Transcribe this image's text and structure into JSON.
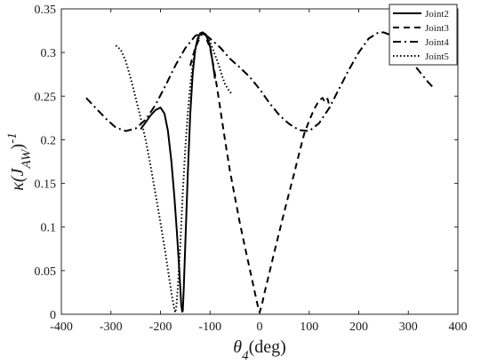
{
  "chart_data": {
    "type": "line",
    "xlabel": {
      "main": "θ",
      "sub": "4",
      "tail": "(deg)"
    },
    "ylabel": {
      "main": "κ(J",
      "sub": "AW",
      "close": ")",
      "sup": "-1"
    },
    "xlim": [
      -400,
      400
    ],
    "ylim": [
      0,
      0.35
    ],
    "xticks": [
      -400,
      -300,
      -200,
      -100,
      0,
      100,
      200,
      300,
      400
    ],
    "xtick_labels": [
      "-400",
      "-300",
      "-200",
      "-100",
      "0",
      "100",
      "200",
      "300",
      "400"
    ],
    "yticks": [
      0,
      0.05,
      0.1,
      0.15,
      0.2,
      0.25,
      0.3,
      0.35
    ],
    "ytick_labels": [
      "0",
      "0.05",
      "0.1",
      "0.15",
      "0.2",
      "0.25",
      "0.3",
      "0.35"
    ],
    "grid": false,
    "legend_position": "top-right",
    "series": [
      {
        "name": "Joint2",
        "dash": "solid",
        "x": [
          -240,
          -230,
          -220,
          -210,
          -200,
          -192,
          -185,
          -178,
          -172,
          -167,
          -163,
          -160,
          -158,
          -156,
          -155,
          -153,
          -150,
          -145,
          -140,
          -135,
          -130,
          -125,
          -120,
          -115,
          -110,
          -105,
          -100,
          -95,
          -90
        ],
        "y": [
          0.212,
          0.22,
          0.228,
          0.234,
          0.237,
          0.23,
          0.21,
          0.175,
          0.135,
          0.095,
          0.06,
          0.03,
          0.01,
          0.003,
          0.004,
          0.03,
          0.08,
          0.16,
          0.23,
          0.275,
          0.303,
          0.316,
          0.322,
          0.323,
          0.321,
          0.316,
          0.307,
          0.29,
          0.27
        ]
      },
      {
        "name": "Joint3",
        "dash": "dashed",
        "x": [
          -140,
          -130,
          -120,
          -115,
          -110,
          -100,
          -90,
          -80,
          -70,
          -60,
          -50,
          -40,
          -30,
          -20,
          -10,
          -3,
          0,
          5,
          10,
          20,
          30,
          40,
          50,
          60,
          70,
          80,
          90,
          100,
          110,
          120,
          127,
          132,
          137,
          142
        ],
        "y": [
          0.285,
          0.305,
          0.318,
          0.322,
          0.32,
          0.305,
          0.275,
          0.238,
          0.2,
          0.165,
          0.135,
          0.105,
          0.078,
          0.052,
          0.026,
          0.008,
          0.002,
          0.012,
          0.025,
          0.048,
          0.072,
          0.095,
          0.118,
          0.14,
          0.162,
          0.185,
          0.207,
          0.222,
          0.235,
          0.245,
          0.248,
          0.243,
          0.247,
          0.236
        ]
      },
      {
        "name": "Joint4",
        "dash": "dash-dot",
        "x": [
          -350,
          -330,
          -310,
          -290,
          -270,
          -250,
          -230,
          -210,
          -190,
          -170,
          -150,
          -130,
          -115,
          -100,
          -80,
          -60,
          -40,
          -20,
          0,
          20,
          40,
          60,
          80,
          100,
          120,
          140,
          160,
          180,
          200,
          220,
          240,
          250,
          260,
          280,
          300,
          320,
          340,
          350
        ],
        "y": [
          0.248,
          0.236,
          0.224,
          0.214,
          0.21,
          0.213,
          0.223,
          0.24,
          0.262,
          0.285,
          0.305,
          0.319,
          0.323,
          0.316,
          0.306,
          0.293,
          0.283,
          0.272,
          0.258,
          0.242,
          0.228,
          0.218,
          0.211,
          0.21,
          0.219,
          0.236,
          0.258,
          0.28,
          0.3,
          0.316,
          0.323,
          0.323,
          0.321,
          0.31,
          0.295,
          0.28,
          0.266,
          0.26
        ]
      },
      {
        "name": "Joint5",
        "dash": "dotted",
        "x": [
          -290,
          -280,
          -270,
          -260,
          -250,
          -240,
          -230,
          -220,
          -210,
          -200,
          -190,
          -182,
          -176,
          -172,
          -170,
          -168,
          -165,
          -160,
          -155,
          -150,
          -145,
          -140,
          -135,
          -130,
          -125,
          -120,
          -115,
          -110,
          -105,
          -100,
          -95,
          -90,
          -85,
          -80,
          -75,
          -70,
          -65,
          -60,
          -55
        ],
        "y": [
          0.308,
          0.303,
          0.29,
          0.27,
          0.248,
          0.225,
          0.2,
          0.17,
          0.138,
          0.105,
          0.07,
          0.04,
          0.018,
          0.006,
          0.002,
          0.008,
          0.03,
          0.08,
          0.14,
          0.19,
          0.23,
          0.262,
          0.285,
          0.302,
          0.313,
          0.32,
          0.323,
          0.322,
          0.318,
          0.312,
          0.305,
          0.297,
          0.29,
          0.281,
          0.272,
          0.264,
          0.259,
          0.255,
          0.252
        ]
      }
    ]
  }
}
